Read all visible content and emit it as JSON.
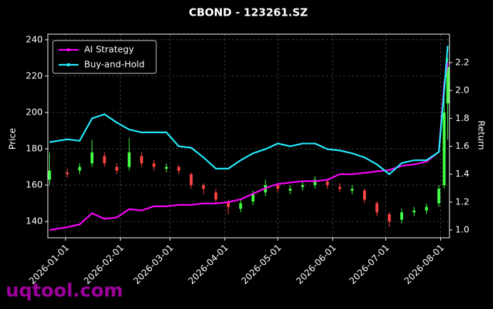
{
  "chart_data": {
    "type": "candlestick",
    "title": "CBOND - 123261.SZ",
    "ylabel": "Price",
    "y2label": "Return",
    "watermark": "uqtool.com",
    "x": [
      "2025-12-23",
      "2026-01-02",
      "2026-01-09",
      "2026-01-16",
      "2026-01-23",
      "2026-01-30",
      "2026-02-06",
      "2026-02-13",
      "2026-02-20",
      "2026-02-27",
      "2026-03-06",
      "2026-03-13",
      "2026-03-20",
      "2026-03-27",
      "2026-04-03",
      "2026-04-10",
      "2026-04-17",
      "2026-04-24",
      "2026-05-01",
      "2026-05-08",
      "2026-05-15",
      "2026-05-22",
      "2026-05-29",
      "2026-06-05",
      "2026-06-12",
      "2026-06-19",
      "2026-06-26",
      "2026-07-03",
      "2026-07-10",
      "2026-07-17",
      "2026-07-24",
      "2026-07-31",
      "2026-08-03",
      "2026-08-05"
    ],
    "open": [
      163,
      167,
      168,
      172,
      176,
      170,
      170,
      176,
      172,
      169,
      170,
      166,
      160,
      156,
      151,
      147,
      151,
      156,
      160,
      157,
      159,
      160,
      162,
      159,
      157,
      157,
      150,
      144,
      141,
      145,
      146,
      150,
      160,
      205
    ],
    "high": [
      178,
      169,
      172,
      185,
      178,
      172,
      186,
      178,
      174,
      172,
      171,
      167,
      161,
      158,
      152,
      152,
      157,
      163,
      161,
      160,
      162,
      165,
      163,
      161,
      160,
      158,
      151,
      145,
      147,
      148,
      150,
      160,
      210,
      230
    ],
    "low": [
      160,
      164,
      166,
      170,
      170,
      166,
      168,
      170,
      168,
      167,
      166,
      158,
      155,
      150,
      144,
      145,
      149,
      154,
      156,
      155,
      157,
      158,
      158,
      156,
      155,
      150,
      143,
      137,
      139,
      143,
      144,
      148,
      158,
      185
    ],
    "close": [
      168,
      166,
      170,
      178,
      172,
      168,
      178,
      172,
      170,
      170,
      168,
      160,
      158,
      152,
      148,
      150,
      155,
      160,
      158,
      158,
      160,
      163,
      160,
      158,
      158,
      152,
      145,
      140,
      145,
      146,
      148,
      158,
      200,
      225
    ],
    "up_color": "#44ff44",
    "down_color": "#ff4444",
    "series": [
      {
        "name": "AI Strategy",
        "color": "#ff00ff",
        "axis": "y2",
        "values": [
          1.0,
          1.02,
          1.04,
          1.12,
          1.08,
          1.09,
          1.15,
          1.14,
          1.17,
          1.17,
          1.18,
          1.18,
          1.19,
          1.19,
          1.2,
          1.22,
          1.26,
          1.3,
          1.33,
          1.34,
          1.35,
          1.35,
          1.36,
          1.4,
          1.4,
          1.41,
          1.42,
          1.43,
          1.46,
          1.47,
          1.49,
          1.56,
          2.05,
          2.2
        ]
      },
      {
        "name": "Buy-and-Hold",
        "color": "#22eeff",
        "axis": "y2",
        "values": [
          1.63,
          1.65,
          1.64,
          1.8,
          1.83,
          1.77,
          1.72,
          1.7,
          1.7,
          1.7,
          1.6,
          1.59,
          1.52,
          1.44,
          1.44,
          1.5,
          1.55,
          1.58,
          1.62,
          1.6,
          1.62,
          1.62,
          1.58,
          1.57,
          1.55,
          1.52,
          1.47,
          1.4,
          1.48,
          1.5,
          1.5,
          1.56,
          2.0,
          2.32
        ]
      }
    ],
    "xlim": [
      "2025-12-22",
      "2026-08-06"
    ],
    "xticks": [
      "2026-01-01",
      "2026-02-01",
      "2026-03-01",
      "2026-04-01",
      "2026-05-01",
      "2026-06-01",
      "2026-07-01",
      "2026-08-01"
    ],
    "ylim": [
      131,
      243.1
    ],
    "yticks": [
      140,
      160,
      180,
      200,
      220,
      240
    ],
    "y2lim": [
      0.944,
      2.404
    ],
    "y2ticks": [
      {
        "value": 1,
        "label": "1.0"
      },
      1.2,
      1.4,
      1.6,
      1.8,
      {
        "value": 2,
        "label": "2.0"
      },
      2.2
    ],
    "grid": true,
    "legend": "upper left"
  }
}
